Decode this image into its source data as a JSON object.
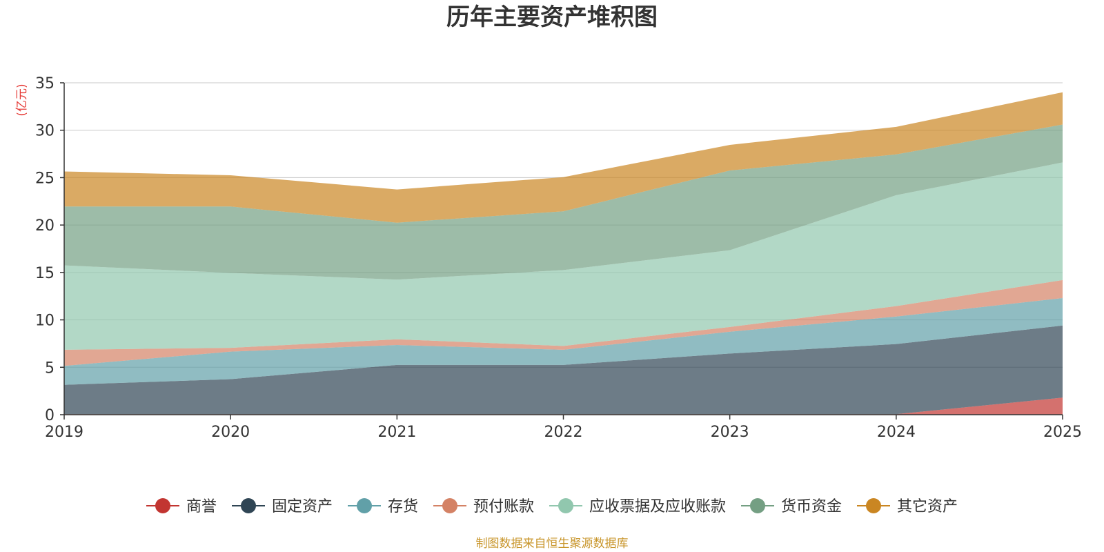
{
  "chart_data": {
    "type": "area",
    "stacked": true,
    "title": "历年主要资产堆积图",
    "unit_label": "(亿元)",
    "source": "制图数据来自恒生聚源数据库",
    "x": [
      "2019",
      "2020",
      "2021",
      "2022",
      "2023",
      "2024",
      "2025"
    ],
    "ylim": [
      0,
      35
    ],
    "yticks": [
      0,
      5,
      10,
      15,
      20,
      25,
      30,
      35
    ],
    "grid": true,
    "legend_position": "bottom",
    "series": [
      {
        "name": "商誉",
        "color": "#c23531",
        "values": [
          0.05,
          0.05,
          0.05,
          0.05,
          0.05,
          0.05,
          1.8
        ]
      },
      {
        "name": "固定资产",
        "color": "#2f4554",
        "values": [
          3.1,
          3.7,
          5.2,
          5.2,
          6.4,
          7.4,
          7.6
        ]
      },
      {
        "name": "存货",
        "color": "#61a0a8",
        "values": [
          2.0,
          2.9,
          2.1,
          1.6,
          2.3,
          2.9,
          2.9
        ]
      },
      {
        "name": "预付账款",
        "color": "#d48265",
        "values": [
          1.7,
          0.4,
          0.6,
          0.4,
          0.5,
          1.1,
          1.9
        ]
      },
      {
        "name": "应收票据及应收账款",
        "color": "#91c7ae",
        "values": [
          8.9,
          7.9,
          6.3,
          8.0,
          8.1,
          11.7,
          12.4
        ]
      },
      {
        "name": "货币资金",
        "color": "#749f83",
        "values": [
          6.2,
          7.0,
          6.0,
          6.2,
          8.4,
          4.3,
          4.0
        ]
      },
      {
        "name": "其它资产",
        "color": "#ca8622",
        "values": [
          3.7,
          3.3,
          3.5,
          3.6,
          2.7,
          2.9,
          3.4
        ]
      }
    ]
  }
}
